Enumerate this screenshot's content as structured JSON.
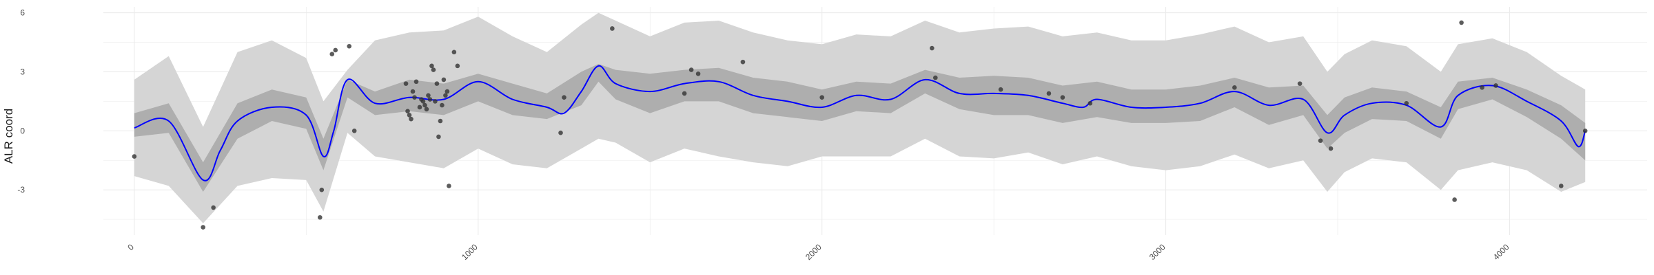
{
  "chart_data": {
    "type": "line",
    "title": "",
    "xlabel": "",
    "ylabel": "ALR coord",
    "xlim": [
      -90,
      4400
    ],
    "ylim": [
      -5.3,
      6.3
    ],
    "x_ticks": [
      {
        "value": 0,
        "label": "0"
      },
      {
        "value": 1000,
        "label": "1000"
      },
      {
        "value": 2000,
        "label": "2000"
      },
      {
        "value": 3000,
        "label": "3000"
      },
      {
        "value": 4000,
        "label": "4000"
      }
    ],
    "y_ticks": [
      {
        "value": -3,
        "label": "-3"
      },
      {
        "value": 0,
        "label": "0"
      },
      {
        "value": 3,
        "label": "3"
      },
      {
        "value": 6,
        "label": "6"
      }
    ],
    "grid": true,
    "colors": {
      "mean_line": "#0000ff",
      "inner_band": "#aeaeae",
      "outer_band": "#d5d5d5",
      "points": "#333333",
      "grid": "#ebebeb"
    },
    "mean": {
      "x": [
        0,
        100,
        200,
        250,
        300,
        400,
        500,
        550,
        580,
        620,
        700,
        800,
        900,
        1000,
        1100,
        1200,
        1250,
        1300,
        1350,
        1400,
        1500,
        1600,
        1700,
        1800,
        1900,
        2000,
        2100,
        2200,
        2300,
        2400,
        2500,
        2600,
        2700,
        2760,
        2800,
        2900,
        3000,
        3100,
        3200,
        3300,
        3400,
        3470,
        3520,
        3600,
        3700,
        3800,
        3850,
        3950,
        4050,
        4150,
        4200,
        4220
      ],
      "y": [
        0.15,
        0.5,
        -2.5,
        -1.0,
        0.5,
        1.2,
        0.8,
        -1.3,
        0.0,
        2.6,
        1.4,
        1.7,
        1.6,
        2.5,
        1.6,
        1.2,
        0.9,
        2.0,
        3.3,
        2.4,
        2.0,
        2.4,
        2.5,
        1.8,
        1.5,
        1.2,
        1.8,
        1.6,
        2.6,
        1.9,
        1.9,
        1.8,
        1.4,
        1.2,
        1.6,
        1.2,
        1.2,
        1.4,
        2.0,
        1.3,
        1.6,
        -0.1,
        0.8,
        1.4,
        1.3,
        0.2,
        1.8,
        2.3,
        1.5,
        0.5,
        -0.8,
        0.0
      ]
    },
    "inner_band": {
      "x": [
        0,
        100,
        200,
        300,
        400,
        500,
        550,
        620,
        700,
        800,
        900,
        1000,
        1100,
        1200,
        1300,
        1350,
        1400,
        1500,
        1600,
        1700,
        1800,
        1900,
        2000,
        2100,
        2200,
        2300,
        2400,
        2500,
        2600,
        2700,
        2800,
        2900,
        3000,
        3100,
        3200,
        3300,
        3400,
        3470,
        3520,
        3600,
        3700,
        3800,
        3850,
        3950,
        4050,
        4150,
        4220
      ],
      "upper": [
        0.9,
        1.4,
        -1.6,
        1.4,
        2.1,
        1.7,
        -0.4,
        2.6,
        2.0,
        2.6,
        2.4,
        2.9,
        2.4,
        1.9,
        3.0,
        3.4,
        3.1,
        2.9,
        3.1,
        3.2,
        2.7,
        2.5,
        2.1,
        2.5,
        2.4,
        3.1,
        2.7,
        2.8,
        2.7,
        2.3,
        2.5,
        2.1,
        2.1,
        2.3,
        2.7,
        2.2,
        2.3,
        0.8,
        1.7,
        2.2,
        2.0,
        1.2,
        2.5,
        2.7,
        2.1,
        1.3,
        0.4
      ],
      "lower": [
        -0.3,
        -0.1,
        -3.1,
        -0.4,
        0.5,
        0.1,
        -2.0,
        1.7,
        0.8,
        1.0,
        0.8,
        1.5,
        0.8,
        0.6,
        1.3,
        2.5,
        1.6,
        0.9,
        1.5,
        1.5,
        0.9,
        0.7,
        0.5,
        1.0,
        0.9,
        1.9,
        1.1,
        0.8,
        0.8,
        0.4,
        0.7,
        0.4,
        0.4,
        0.5,
        1.2,
        0.3,
        0.8,
        -0.9,
        -0.1,
        0.6,
        0.5,
        -0.4,
        1.1,
        1.6,
        0.7,
        -0.4,
        -1.5
      ]
    },
    "outer_band": {
      "x": [
        0,
        100,
        200,
        300,
        400,
        500,
        550,
        620,
        700,
        800,
        900,
        1000,
        1100,
        1200,
        1300,
        1350,
        1400,
        1500,
        1600,
        1700,
        1800,
        1900,
        2000,
        2100,
        2200,
        2300,
        2400,
        2500,
        2600,
        2700,
        2800,
        2900,
        3000,
        3100,
        3200,
        3300,
        3400,
        3470,
        3520,
        3600,
        3700,
        3800,
        3850,
        3950,
        4050,
        4150,
        4220
      ],
      "upper": [
        2.6,
        3.8,
        0.2,
        4.0,
        4.6,
        3.7,
        1.5,
        3.1,
        4.6,
        5.0,
        5.1,
        5.8,
        4.8,
        4.0,
        5.4,
        6.0,
        5.6,
        4.8,
        5.5,
        5.6,
        5.0,
        4.6,
        4.4,
        4.9,
        4.8,
        5.6,
        5.0,
        5.2,
        5.3,
        4.8,
        5.0,
        4.6,
        4.6,
        4.9,
        5.3,
        4.5,
        4.8,
        3.0,
        3.9,
        4.6,
        4.3,
        3.0,
        4.4,
        4.7,
        4.0,
        2.8,
        2.1
      ],
      "lower": [
        -2.3,
        -2.8,
        -4.7,
        -2.8,
        -2.4,
        -2.5,
        -4.1,
        -0.1,
        -1.3,
        -1.6,
        -1.9,
        -0.9,
        -1.7,
        -1.9,
        -0.9,
        -0.4,
        -0.6,
        -1.6,
        -0.9,
        -1.3,
        -1.6,
        -1.8,
        -1.3,
        -1.3,
        -1.3,
        -0.4,
        -1.3,
        -1.4,
        -1.1,
        -1.7,
        -1.3,
        -1.8,
        -2.0,
        -1.8,
        -1.2,
        -1.9,
        -1.5,
        -3.1,
        -2.1,
        -1.4,
        -1.6,
        -3.0,
        -2.0,
        -1.6,
        -2.0,
        -3.1,
        -2.6
      ]
    },
    "points": [
      {
        "x": 0,
        "y": -1.3
      },
      {
        "x": 200,
        "y": -4.9
      },
      {
        "x": 230,
        "y": -3.9
      },
      {
        "x": 540,
        "y": -4.4
      },
      {
        "x": 545,
        "y": -3.0
      },
      {
        "x": 575,
        "y": 3.9
      },
      {
        "x": 585,
        "y": 4.1
      },
      {
        "x": 625,
        "y": 4.3
      },
      {
        "x": 640,
        "y": 0.0
      },
      {
        "x": 790,
        "y": 2.4
      },
      {
        "x": 795,
        "y": 1.0
      },
      {
        "x": 800,
        "y": 0.8
      },
      {
        "x": 805,
        "y": 0.6
      },
      {
        "x": 810,
        "y": 2.0
      },
      {
        "x": 815,
        "y": 1.7
      },
      {
        "x": 820,
        "y": 2.5
      },
      {
        "x": 830,
        "y": 1.2
      },
      {
        "x": 835,
        "y": 1.6
      },
      {
        "x": 840,
        "y": 1.5
      },
      {
        "x": 845,
        "y": 1.3
      },
      {
        "x": 850,
        "y": 1.1
      },
      {
        "x": 855,
        "y": 1.8
      },
      {
        "x": 860,
        "y": 1.6
      },
      {
        "x": 865,
        "y": 3.3
      },
      {
        "x": 870,
        "y": 3.1
      },
      {
        "x": 875,
        "y": 1.5
      },
      {
        "x": 880,
        "y": 2.4
      },
      {
        "x": 885,
        "y": -0.3
      },
      {
        "x": 890,
        "y": 0.5
      },
      {
        "x": 895,
        "y": 1.3
      },
      {
        "x": 900,
        "y": 2.6
      },
      {
        "x": 905,
        "y": 1.8
      },
      {
        "x": 910,
        "y": 2.0
      },
      {
        "x": 915,
        "y": -2.8
      },
      {
        "x": 930,
        "y": 4.0
      },
      {
        "x": 940,
        "y": 3.3
      },
      {
        "x": 1240,
        "y": -0.1
      },
      {
        "x": 1250,
        "y": 1.7
      },
      {
        "x": 1390,
        "y": 5.2
      },
      {
        "x": 1600,
        "y": 1.9
      },
      {
        "x": 1620,
        "y": 3.1
      },
      {
        "x": 1640,
        "y": 2.9
      },
      {
        "x": 1770,
        "y": 3.5
      },
      {
        "x": 2000,
        "y": 1.7
      },
      {
        "x": 2320,
        "y": 4.2
      },
      {
        "x": 2330,
        "y": 2.7
      },
      {
        "x": 2520,
        "y": 2.1
      },
      {
        "x": 2660,
        "y": 1.9
      },
      {
        "x": 2700,
        "y": 1.7
      },
      {
        "x": 2780,
        "y": 1.4
      },
      {
        "x": 3200,
        "y": 2.2
      },
      {
        "x": 3390,
        "y": 2.4
      },
      {
        "x": 3450,
        "y": -0.5
      },
      {
        "x": 3480,
        "y": -0.9
      },
      {
        "x": 3700,
        "y": 1.4
      },
      {
        "x": 3840,
        "y": -3.5
      },
      {
        "x": 3860,
        "y": 5.5
      },
      {
        "x": 3920,
        "y": 2.2
      },
      {
        "x": 3960,
        "y": 2.3
      },
      {
        "x": 4150,
        "y": -2.8
      },
      {
        "x": 4220,
        "y": 0.0
      }
    ]
  }
}
